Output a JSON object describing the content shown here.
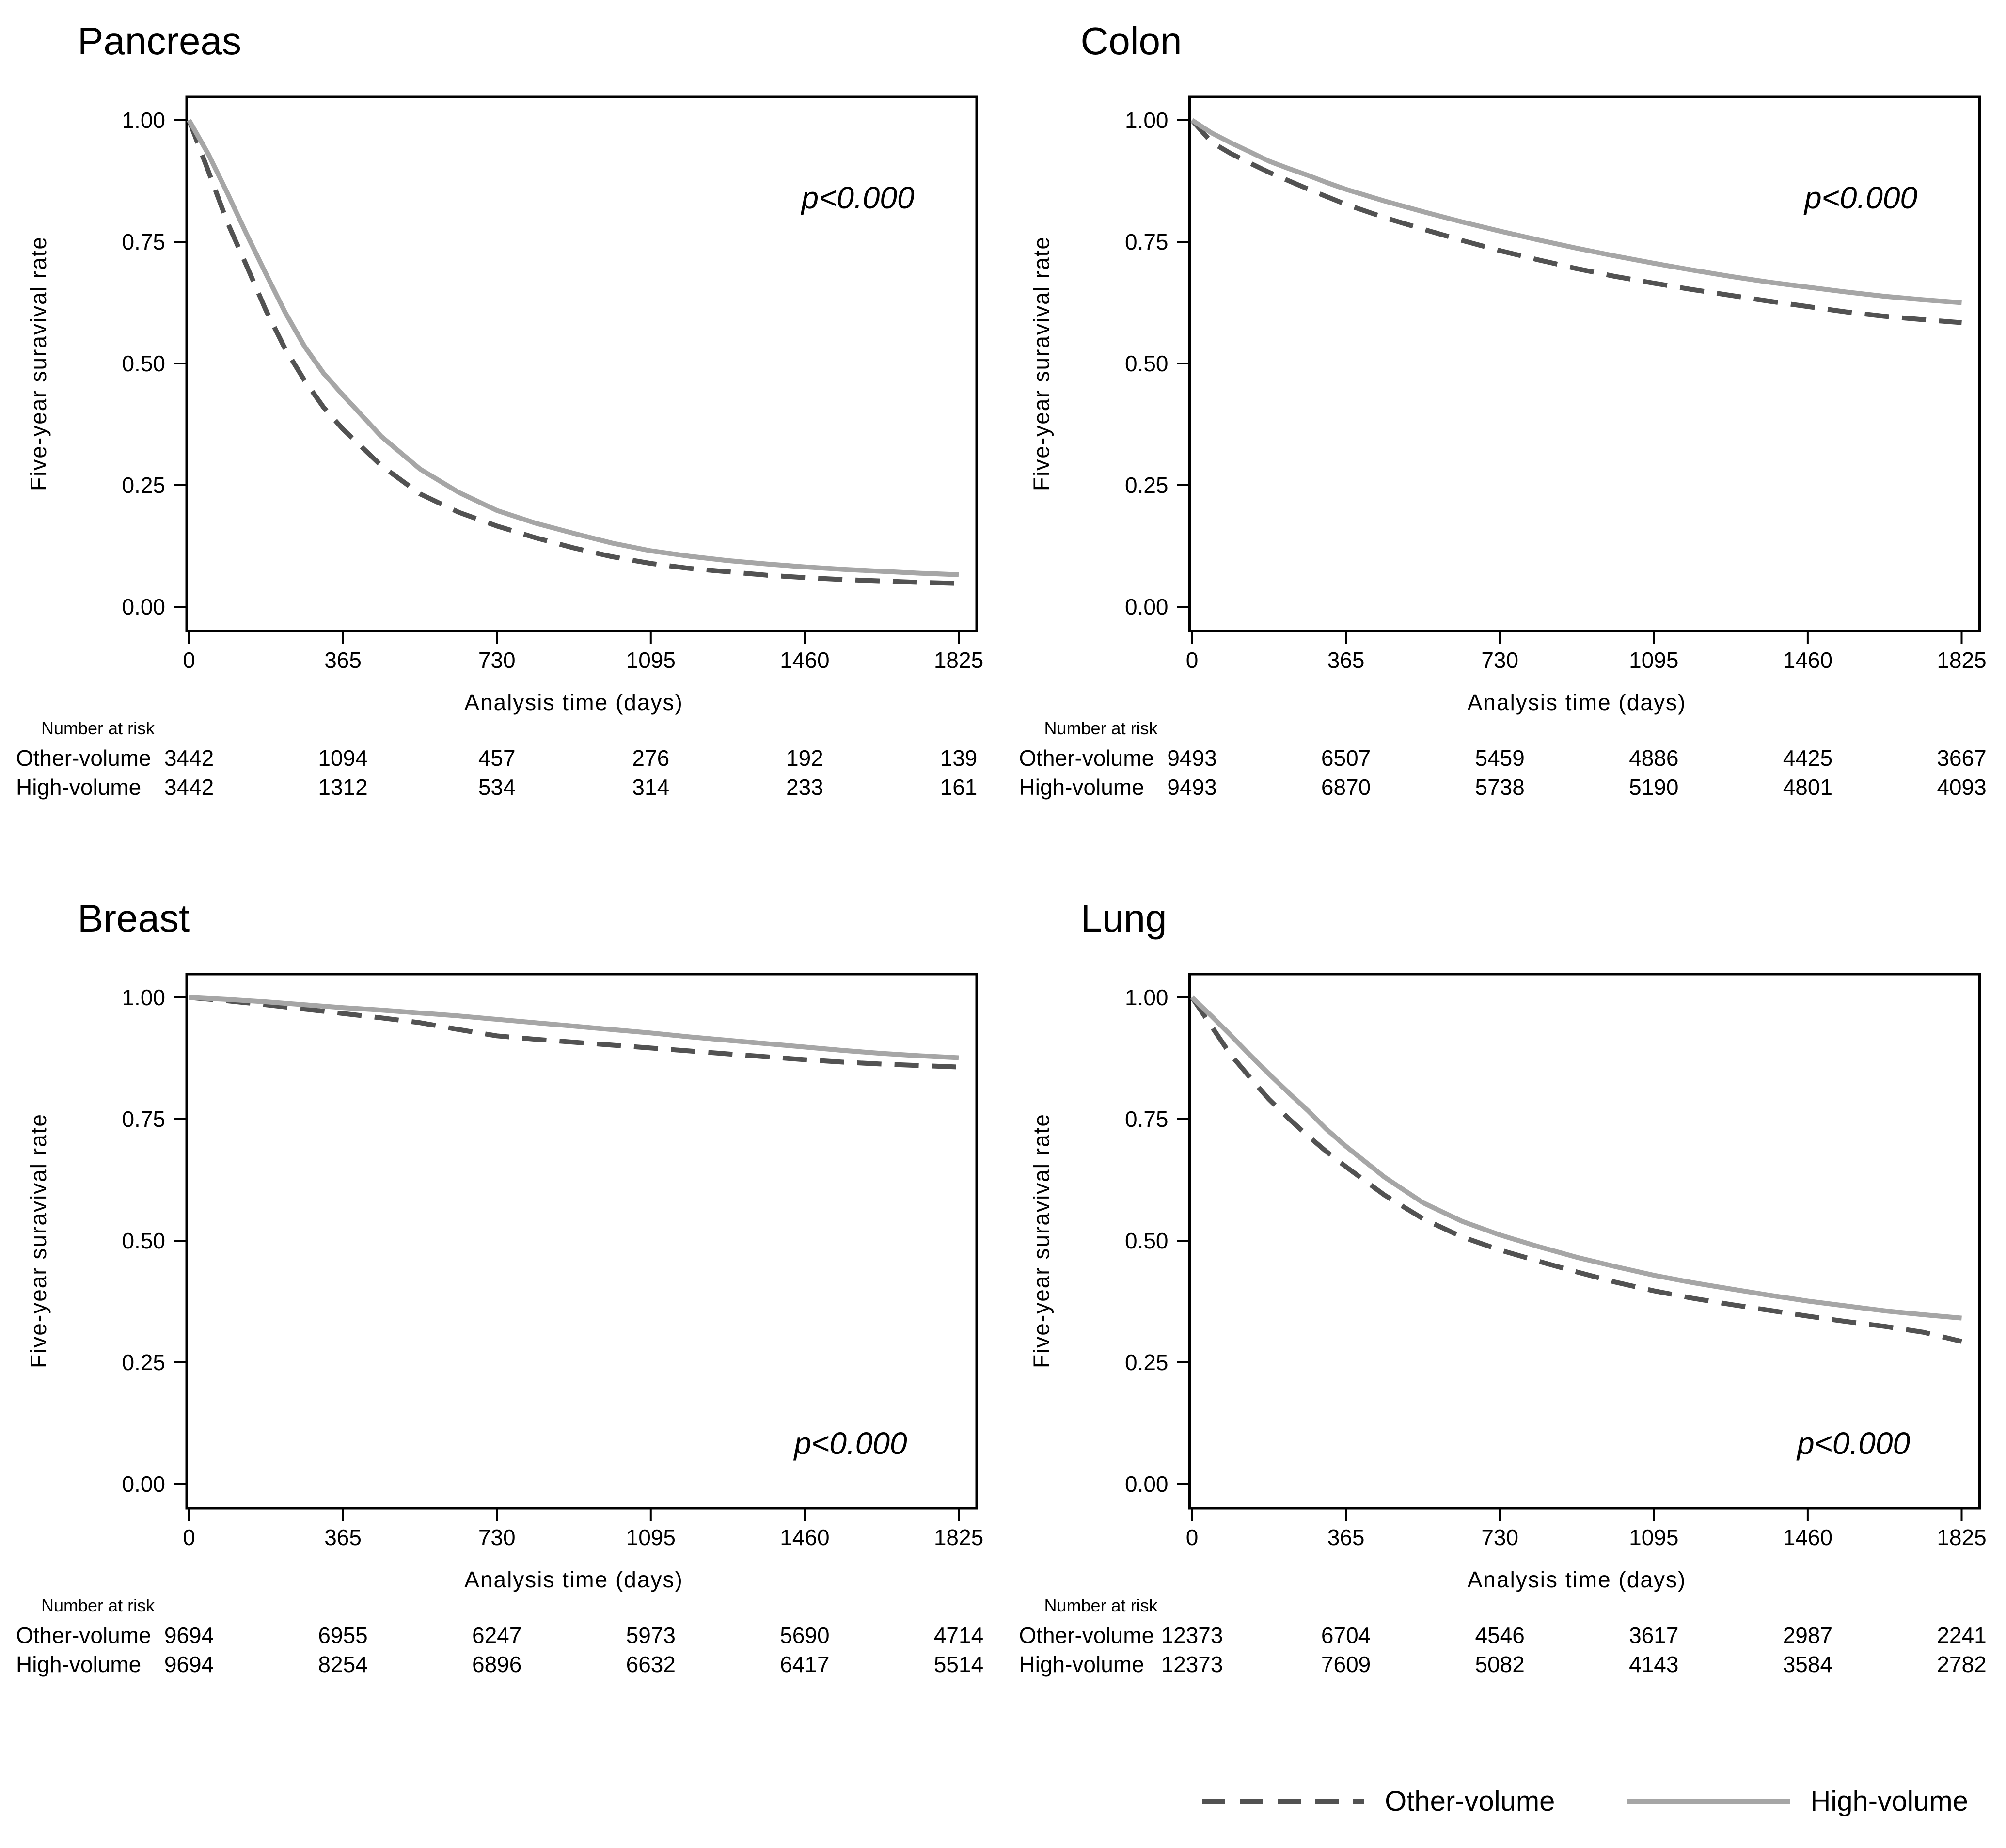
{
  "figure": {
    "colors": {
      "high_volume": "#a6a6a6",
      "other_volume": "#525252",
      "axis": "#000000"
    },
    "legend": [
      {
        "label": "Other-volume",
        "style": "dashed"
      },
      {
        "label": "High-volume",
        "style": "solid"
      }
    ]
  },
  "chart_data": [
    {
      "type": "line",
      "title": "Pancreas",
      "p_value": "p<0.000",
      "p_value_position": "top-right",
      "xlabel": "Analysis time (days)",
      "ylabel": "Five-year suravival rate",
      "xlim": [
        0,
        1825
      ],
      "ylim": [
        0,
        1
      ],
      "x_ticks": [
        0,
        365,
        730,
        1095,
        1460,
        1825
      ],
      "y_ticks": [
        0,
        0.25,
        0.5,
        0.75,
        1
      ],
      "y_tick_labels": [
        "0.00",
        "0.25",
        "0.50",
        "0.75",
        "1.00"
      ],
      "grid": false,
      "series": [
        {
          "name": "Other-volume",
          "style": "dashed",
          "x": [
            0,
            46,
            91,
            137,
            182,
            228,
            274,
            319,
            365,
            456,
            548,
            640,
            730,
            821,
            912,
            1003,
            1095,
            1186,
            1277,
            1369,
            1460,
            1551,
            1642,
            1734,
            1825
          ],
          "y": [
            1.0,
            0.895,
            0.79,
            0.7,
            0.61,
            0.53,
            0.465,
            0.41,
            0.365,
            0.29,
            0.232,
            0.194,
            0.166,
            0.142,
            0.121,
            0.103,
            0.089,
            0.079,
            0.072,
            0.065,
            0.06,
            0.056,
            0.053,
            0.05,
            0.048
          ]
        },
        {
          "name": "High-volume",
          "style": "solid",
          "x": [
            0,
            46,
            91,
            137,
            182,
            228,
            274,
            319,
            365,
            456,
            548,
            640,
            730,
            821,
            912,
            1003,
            1095,
            1186,
            1277,
            1369,
            1460,
            1551,
            1642,
            1734,
            1825
          ],
          "y": [
            1.0,
            0.93,
            0.85,
            0.765,
            0.685,
            0.605,
            0.535,
            0.48,
            0.435,
            0.35,
            0.283,
            0.235,
            0.198,
            0.172,
            0.151,
            0.131,
            0.115,
            0.104,
            0.095,
            0.088,
            0.082,
            0.077,
            0.073,
            0.069,
            0.066
          ]
        }
      ],
      "number_at_risk": {
        "header": "Number at risk",
        "rows": [
          {
            "label": "Other-volume",
            "values": [
              3442,
              1094,
              457,
              276,
              192,
              139
            ]
          },
          {
            "label": "High-volume",
            "values": [
              3442,
              1312,
              534,
              314,
              233,
              161
            ]
          }
        ]
      }
    },
    {
      "type": "line",
      "title": "Colon",
      "p_value": "p<0.000",
      "p_value_position": "top-right",
      "xlabel": "Analysis time (days)",
      "ylabel": "Five-year suravival rate",
      "xlim": [
        0,
        1825
      ],
      "ylim": [
        0,
        1
      ],
      "x_ticks": [
        0,
        365,
        730,
        1095,
        1460,
        1825
      ],
      "y_ticks": [
        0,
        0.25,
        0.5,
        0.75,
        1
      ],
      "y_tick_labels": [
        "0.00",
        "0.25",
        "0.50",
        "0.75",
        "1.00"
      ],
      "grid": false,
      "series": [
        {
          "name": "Other-volume",
          "style": "dashed",
          "x": [
            0,
            46,
            91,
            137,
            182,
            228,
            274,
            319,
            365,
            456,
            548,
            640,
            730,
            821,
            912,
            1003,
            1095,
            1186,
            1277,
            1369,
            1460,
            1551,
            1642,
            1734,
            1825
          ],
          "y": [
            1.0,
            0.955,
            0.932,
            0.912,
            0.893,
            0.876,
            0.859,
            0.843,
            0.827,
            0.8,
            0.776,
            0.753,
            0.732,
            0.713,
            0.695,
            0.679,
            0.665,
            0.652,
            0.64,
            0.628,
            0.617,
            0.606,
            0.597,
            0.59,
            0.584
          ]
        },
        {
          "name": "High-volume",
          "style": "solid",
          "x": [
            0,
            46,
            91,
            137,
            182,
            228,
            274,
            319,
            365,
            456,
            548,
            640,
            730,
            821,
            912,
            1003,
            1095,
            1186,
            1277,
            1369,
            1460,
            1551,
            1642,
            1734,
            1825
          ],
          "y": [
            1.0,
            0.974,
            0.954,
            0.935,
            0.916,
            0.901,
            0.887,
            0.872,
            0.858,
            0.834,
            0.812,
            0.791,
            0.772,
            0.754,
            0.737,
            0.721,
            0.706,
            0.692,
            0.679,
            0.667,
            0.657,
            0.647,
            0.638,
            0.631,
            0.625
          ]
        }
      ],
      "number_at_risk": {
        "header": "Number at risk",
        "rows": [
          {
            "label": "Other-volume",
            "values": [
              9493,
              6507,
              5459,
              4886,
              4425,
              3667
            ]
          },
          {
            "label": "High-volume",
            "values": [
              9493,
              6870,
              5738,
              5190,
              4801,
              4093
            ]
          }
        ]
      }
    },
    {
      "type": "line",
      "title": "Breast",
      "p_value": "p<0.000",
      "p_value_position": "bottom-right",
      "xlabel": "Analysis time (days)",
      "ylabel": "Five-year suravival rate",
      "xlim": [
        0,
        1825
      ],
      "ylim": [
        0,
        1
      ],
      "x_ticks": [
        0,
        365,
        730,
        1095,
        1460,
        1825
      ],
      "y_ticks": [
        0,
        0.25,
        0.5,
        0.75,
        1
      ],
      "y_tick_labels": [
        "0.00",
        "0.25",
        "0.50",
        "0.75",
        "1.00"
      ],
      "grid": false,
      "series": [
        {
          "name": "Other-volume",
          "style": "dashed",
          "x": [
            0,
            91,
            182,
            274,
            365,
            456,
            548,
            640,
            730,
            821,
            912,
            1003,
            1095,
            1186,
            1277,
            1369,
            1460,
            1551,
            1642,
            1734,
            1825
          ],
          "y": [
            1.0,
            0.993,
            0.985,
            0.976,
            0.967,
            0.958,
            0.948,
            0.934,
            0.921,
            0.914,
            0.908,
            0.902,
            0.896,
            0.89,
            0.884,
            0.878,
            0.872,
            0.867,
            0.863,
            0.86,
            0.857
          ]
        },
        {
          "name": "High-volume",
          "style": "solid",
          "x": [
            0,
            91,
            182,
            274,
            365,
            456,
            548,
            640,
            730,
            821,
            912,
            1003,
            1095,
            1186,
            1277,
            1369,
            1460,
            1551,
            1642,
            1734,
            1825
          ],
          "y": [
            1.0,
            0.996,
            0.991,
            0.985,
            0.979,
            0.974,
            0.968,
            0.962,
            0.955,
            0.948,
            0.941,
            0.934,
            0.927,
            0.919,
            0.912,
            0.905,
            0.898,
            0.891,
            0.885,
            0.88,
            0.876
          ]
        }
      ],
      "number_at_risk": {
        "header": "Number at risk",
        "rows": [
          {
            "label": "Other-volume",
            "values": [
              9694,
              6955,
              6247,
              5973,
              5690,
              4714
            ]
          },
          {
            "label": "High-volume",
            "values": [
              9694,
              8254,
              6896,
              6632,
              6417,
              5514
            ]
          }
        ]
      }
    },
    {
      "type": "line",
      "title": "Lung",
      "p_value": "p<0.000",
      "p_value_position": "bottom-right",
      "xlabel": "Analysis time (days)",
      "ylabel": "Five-year suravival rate",
      "xlim": [
        0,
        1825
      ],
      "ylim": [
        0,
        1
      ],
      "x_ticks": [
        0,
        365,
        730,
        1095,
        1460,
        1825
      ],
      "y_ticks": [
        0,
        0.25,
        0.5,
        0.75,
        1
      ],
      "y_tick_labels": [
        "0.00",
        "0.25",
        "0.50",
        "0.75",
        "1.00"
      ],
      "grid": false,
      "series": [
        {
          "name": "Other-volume",
          "style": "dashed",
          "x": [
            0,
            46,
            91,
            137,
            182,
            228,
            274,
            319,
            365,
            456,
            548,
            640,
            730,
            821,
            912,
            1003,
            1095,
            1186,
            1277,
            1369,
            1460,
            1551,
            1642,
            1734,
            1825
          ],
          "y": [
            1.0,
            0.941,
            0.883,
            0.836,
            0.791,
            0.752,
            0.716,
            0.683,
            0.652,
            0.594,
            0.545,
            0.508,
            0.481,
            0.458,
            0.436,
            0.415,
            0.397,
            0.382,
            0.369,
            0.357,
            0.345,
            0.334,
            0.324,
            0.312,
            0.293
          ]
        },
        {
          "name": "High-volume",
          "style": "solid",
          "x": [
            0,
            46,
            91,
            137,
            182,
            228,
            274,
            319,
            365,
            456,
            548,
            640,
            730,
            821,
            912,
            1003,
            1095,
            1186,
            1277,
            1369,
            1460,
            1551,
            1642,
            1734,
            1825
          ],
          "y": [
            1.0,
            0.962,
            0.923,
            0.882,
            0.843,
            0.805,
            0.768,
            0.729,
            0.694,
            0.631,
            0.578,
            0.54,
            0.512,
            0.488,
            0.466,
            0.447,
            0.429,
            0.414,
            0.401,
            0.388,
            0.376,
            0.366,
            0.356,
            0.348,
            0.341
          ]
        }
      ],
      "number_at_risk": {
        "header": "Number at risk",
        "rows": [
          {
            "label": "Other-volume",
            "values": [
              12373,
              6704,
              4546,
              3617,
              2987,
              2241
            ]
          },
          {
            "label": "High-volume",
            "values": [
              12373,
              7609,
              5082,
              4143,
              3584,
              2782
            ]
          }
        ]
      }
    }
  ]
}
